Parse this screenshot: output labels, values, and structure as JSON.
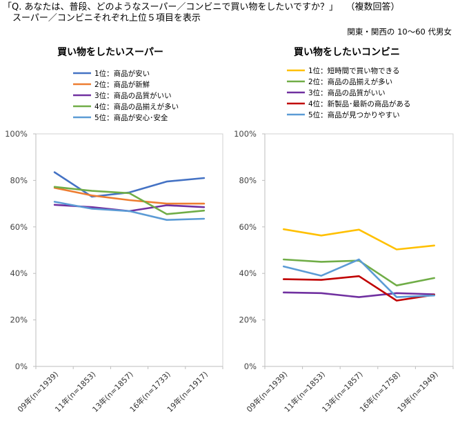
{
  "header": {
    "question": "「Q. あなたは、普段、どのようなスーパー／コンビニで買い物をしたいですか？」",
    "multi": "（複数回答）",
    "subtitle": "スーパー／コンビニそれぞれ上位５項目を表示",
    "demographic": "関東・関西の 10～60 代男女"
  },
  "chart_data": [
    {
      "type": "line",
      "title": "買い物をしたいスーパー",
      "categories": [
        "09年(n=1939)",
        "11年(n=1853)",
        "13年(n=1857)",
        "16年(n=1733)",
        "19年(n=1917)"
      ],
      "y_ticks": [
        "0%",
        "20%",
        "40%",
        "60%",
        "80%",
        "100%"
      ],
      "ylim": [
        0,
        100
      ],
      "grid": false,
      "legend": "top-left",
      "series": [
        {
          "name": "1位：商品が安い",
          "color": "#4472c4",
          "values": [
            83.5,
            73.0,
            74.8,
            79.5,
            81.0
          ]
        },
        {
          "name": "2位：商品が新鮮",
          "color": "#ed7d31",
          "values": [
            76.8,
            73.5,
            71.5,
            70.0,
            70.0
          ]
        },
        {
          "name": "3位：商品の品質がいい",
          "color": "#7030a0",
          "values": [
            69.5,
            68.5,
            66.8,
            69.3,
            68.5
          ]
        },
        {
          "name": "4位：商品の品揃えが多い",
          "color": "#70ad47",
          "values": [
            77.2,
            75.5,
            74.5,
            65.5,
            67.0
          ]
        },
        {
          "name": "5位：商品が安心･安全",
          "color": "#5b9bd5",
          "values": [
            70.8,
            67.8,
            66.8,
            63.0,
            63.5
          ]
        }
      ]
    },
    {
      "type": "line",
      "title": "買い物をしたいコンビニ",
      "categories": [
        "09年(n=1939)",
        "11年(n=1853)",
        "13年(n=1857)",
        "16年(n=1758)",
        "19年(n=1949)"
      ],
      "y_ticks": [
        "0%",
        "20%",
        "40%",
        "60%",
        "80%",
        "100%"
      ],
      "ylim": [
        0,
        100
      ],
      "grid": false,
      "legend": "top-left",
      "series": [
        {
          "name": "1位：短時間で買い物できる",
          "color": "#ffc000",
          "values": [
            59.0,
            56.3,
            58.8,
            50.3,
            52.0
          ]
        },
        {
          "name": "2位：商品の品揃えが多い",
          "color": "#70ad47",
          "values": [
            46.0,
            45.0,
            45.5,
            34.8,
            38.0
          ]
        },
        {
          "name": "3位：商品の品質がいい",
          "color": "#7030a0",
          "values": [
            31.8,
            31.5,
            29.8,
            31.5,
            31.0
          ]
        },
        {
          "name": "4位：新製品･最新の商品がある",
          "color": "#c00000",
          "values": [
            37.5,
            37.2,
            38.8,
            28.3,
            30.8
          ]
        },
        {
          "name": "5位：商品が見つかりやすい",
          "color": "#5b9bd5",
          "values": [
            43.0,
            39.0,
            46.0,
            29.8,
            30.5
          ]
        }
      ]
    }
  ]
}
